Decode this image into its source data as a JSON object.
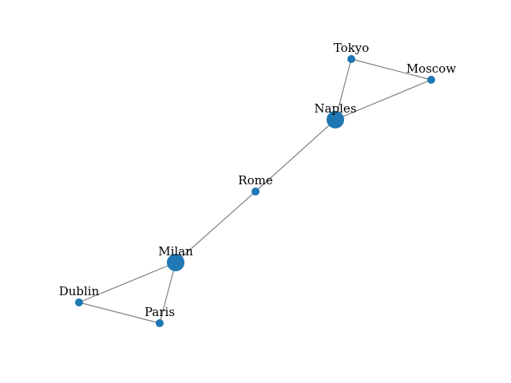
{
  "graph": {
    "node_color": "#1f77b4",
    "edge_color": "#808080",
    "nodes": [
      {
        "id": "Tokyo",
        "label": "Tokyo",
        "degree": 2
      },
      {
        "id": "Moscow",
        "label": "Moscow",
        "degree": 2
      },
      {
        "id": "Naples",
        "label": "Naples",
        "degree": 3
      },
      {
        "id": "Rome",
        "label": "Rome",
        "degree": 2
      },
      {
        "id": "Milan",
        "label": "Milan",
        "degree": 3
      },
      {
        "id": "Dublin",
        "label": "Dublin",
        "degree": 2
      },
      {
        "id": "Paris",
        "label": "Paris",
        "degree": 2
      }
    ],
    "edges": [
      {
        "source": "Tokyo",
        "target": "Moscow"
      },
      {
        "source": "Tokyo",
        "target": "Naples"
      },
      {
        "source": "Moscow",
        "target": "Naples"
      },
      {
        "source": "Naples",
        "target": "Rome"
      },
      {
        "source": "Rome",
        "target": "Milan"
      },
      {
        "source": "Milan",
        "target": "Dublin"
      },
      {
        "source": "Milan",
        "target": "Paris"
      },
      {
        "source": "Dublin",
        "target": "Paris"
      }
    ]
  }
}
